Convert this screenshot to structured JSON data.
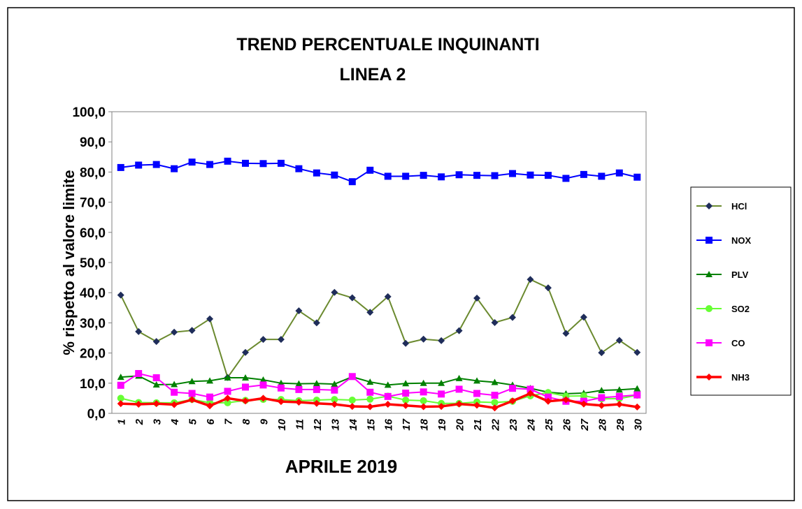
{
  "chart_data": {
    "type": "line",
    "title": "TREND PERCENTUALE INQUINANTI",
    "subtitle": "LINEA 2",
    "y_label": "% rispetto al valore limite",
    "x_label": "APRILE 2019",
    "categories": [
      "1",
      "2",
      "3",
      "4",
      "5",
      "6",
      "7",
      "8",
      "9",
      "10",
      "11",
      "12",
      "13",
      "14",
      "15",
      "16",
      "17",
      "18",
      "19",
      "20",
      "21",
      "22",
      "23",
      "24",
      "25",
      "26",
      "27",
      "28",
      "29",
      "30"
    ],
    "ylim": [
      0,
      100
    ],
    "yticks": [
      {
        "value": 0,
        "label": "0,0"
      },
      {
        "value": 10,
        "label": "10,0"
      },
      {
        "value": 20,
        "label": "20,0"
      },
      {
        "value": 30,
        "label": "30,0"
      },
      {
        "value": 40,
        "label": "40,0"
      },
      {
        "value": 50,
        "label": "50,0"
      },
      {
        "value": 60,
        "label": "60,0"
      },
      {
        "value": 70,
        "label": "70,0"
      },
      {
        "value": 80,
        "label": "80,0"
      },
      {
        "value": 90,
        "label": "90,0"
      },
      {
        "value": 100,
        "label": "100,0"
      }
    ],
    "grid": false,
    "legend": "right",
    "series": [
      {
        "name": "HCl",
        "color": "#6b8a2f",
        "marker": "diamond",
        "marker_color": "#1f2d5a",
        "values": [
          39.2,
          27.1,
          23.8,
          26.9,
          27.5,
          31.3,
          11.9,
          20.2,
          24.5,
          24.5,
          34.0,
          30.0,
          40.1,
          38.3,
          33.5,
          38.7,
          23.2,
          24.6,
          24.1,
          27.4,
          38.2,
          30.1,
          31.8,
          44.4,
          41.6,
          26.5,
          31.9,
          20.1,
          24.2,
          20.2
        ]
      },
      {
        "name": "NOX",
        "color": "#0000ff",
        "marker": "square",
        "marker_color": "#0000ff",
        "values": [
          81.5,
          82.3,
          82.5,
          81.1,
          83.3,
          82.5,
          83.6,
          82.9,
          82.8,
          82.9,
          81.1,
          79.7,
          79.0,
          76.8,
          80.6,
          78.6,
          78.6,
          78.9,
          78.4,
          79.1,
          78.9,
          78.8,
          79.5,
          79.0,
          78.9,
          77.9,
          79.2,
          78.6,
          79.7,
          78.3
        ]
      },
      {
        "name": "PLV",
        "color": "#008000",
        "marker": "triangle",
        "marker_color": "#008000",
        "values": [
          12.0,
          12.4,
          9.5,
          9.6,
          10.6,
          10.8,
          11.8,
          11.8,
          11.1,
          10.0,
          9.8,
          9.9,
          9.7,
          12.1,
          10.4,
          9.4,
          9.9,
          10.0,
          10.0,
          11.6,
          10.8,
          10.3,
          9.4,
          8.3,
          7.0,
          6.5,
          6.7,
          7.6,
          7.8,
          8.2
        ]
      },
      {
        "name": "SO2",
        "color": "#66ff33",
        "marker": "circle",
        "marker_color": "#66ff33",
        "values": [
          5.0,
          3.6,
          3.5,
          3.5,
          4.6,
          3.5,
          3.5,
          4.3,
          4.6,
          4.6,
          4.2,
          4.4,
          4.6,
          4.4,
          4.7,
          5.7,
          4.4,
          4.2,
          3.3,
          3.3,
          3.8,
          3.6,
          4.0,
          5.8,
          6.9,
          5.7,
          5.8,
          4.8,
          4.9,
          6.0
        ]
      },
      {
        "name": "CO",
        "color": "#ff00ff",
        "marker": "square",
        "marker_color": "#ff00ff",
        "values": [
          9.3,
          13.2,
          11.8,
          7.0,
          6.6,
          5.4,
          7.3,
          8.7,
          9.4,
          8.4,
          7.9,
          7.9,
          7.7,
          12.2,
          7.0,
          5.6,
          6.7,
          7.1,
          6.4,
          8.0,
          6.6,
          6.0,
          8.3,
          8.0,
          5.4,
          4.0,
          4.0,
          5.2,
          5.6,
          6.1
        ]
      },
      {
        "name": "NH3",
        "color": "#ff0000",
        "marker": "diamond",
        "marker_color": "#ff0000",
        "values": [
          3.2,
          3.0,
          3.2,
          2.9,
          4.5,
          2.5,
          5.0,
          4.1,
          5.0,
          3.9,
          3.7,
          3.3,
          3.0,
          2.3,
          2.2,
          3.0,
          2.6,
          2.2,
          2.3,
          3.1,
          2.7,
          1.8,
          4.1,
          6.6,
          4.0,
          4.5,
          3.1,
          2.6,
          3.0,
          2.1
        ]
      }
    ]
  }
}
